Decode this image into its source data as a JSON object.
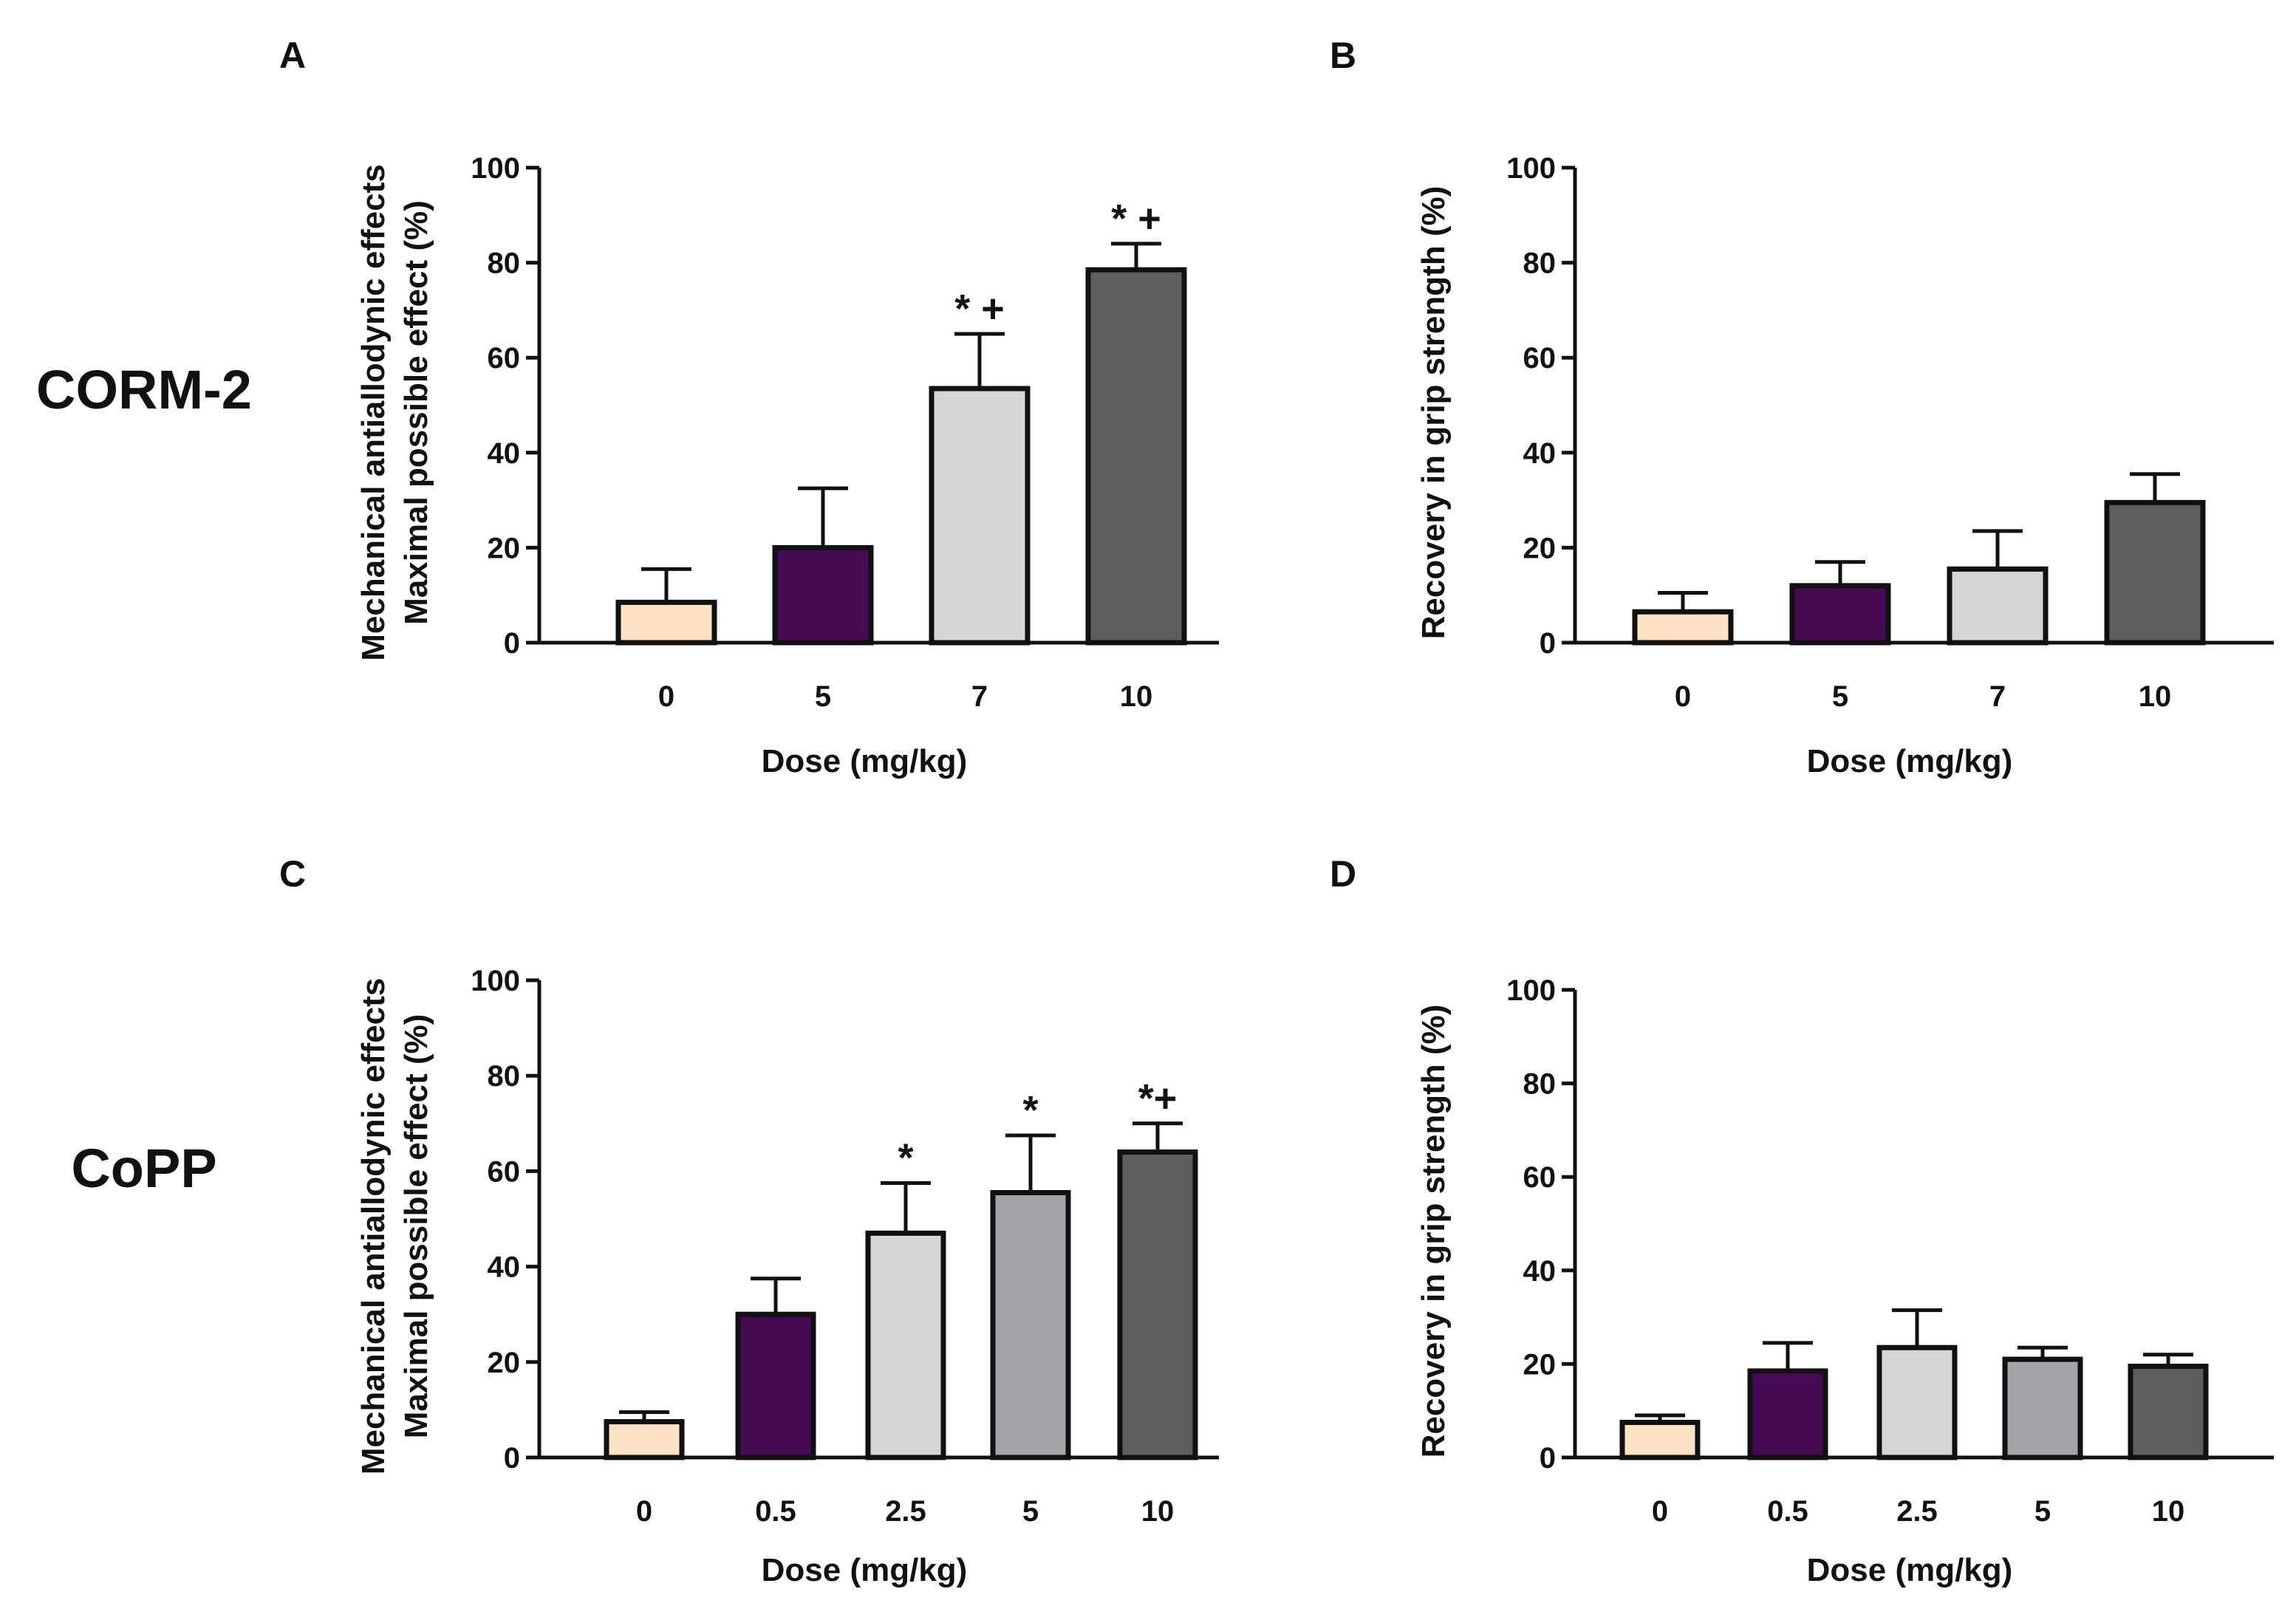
{
  "row_labels": [
    "CORM-2",
    "CoPP"
  ],
  "chart_data": [
    {
      "panel": "A",
      "type": "bar",
      "categories": [
        "0",
        "5",
        "7",
        "10"
      ],
      "values": [
        8.5,
        20,
        53.5,
        78.5
      ],
      "errors": [
        7,
        12.5,
        11.5,
        5.5
      ],
      "significance": [
        "",
        "",
        "* +",
        "* +"
      ],
      "colors": [
        "#fde3c4",
        "#470a55",
        "#d6d6d6",
        "#5e5e5e"
      ],
      "xlabel": "Dose (mg/kg)",
      "ylabel": [
        "Mechanical antiallodynic effects",
        "Maximal possible effect (%)"
      ],
      "ylim": [
        0,
        100
      ],
      "yticks": [
        "0",
        "20",
        "40",
        "60",
        "80",
        "100"
      ],
      "legend": "none"
    },
    {
      "panel": "B",
      "type": "bar",
      "categories": [
        "0",
        "5",
        "7",
        "10"
      ],
      "values": [
        6.5,
        12,
        15.5,
        29.5
      ],
      "errors": [
        4,
        5,
        8,
        6
      ],
      "significance": [
        "",
        "",
        "",
        ""
      ],
      "colors": [
        "#fde3c4",
        "#470a55",
        "#d6d6d6",
        "#5e5e5e"
      ],
      "xlabel": "Dose (mg/kg)",
      "ylabel": [
        "Recovery in grip strength (%)"
      ],
      "ylim": [
        0,
        100
      ],
      "yticks": [
        "0",
        "20",
        "40",
        "60",
        "80",
        "100"
      ],
      "legend": "none"
    },
    {
      "panel": "C",
      "type": "bar",
      "categories": [
        "0",
        "0.5",
        "2.5",
        "5",
        "10"
      ],
      "values": [
        7.5,
        30,
        47,
        55.5,
        64
      ],
      "errors": [
        2,
        7.5,
        10.5,
        12,
        6
      ],
      "significance": [
        "",
        "",
        "*",
        "*",
        "*+"
      ],
      "colors": [
        "#fde3c4",
        "#470a55",
        "#d6d6d6",
        "#a3a3a8",
        "#5e5e5e"
      ],
      "xlabel": "Dose (mg/kg)",
      "ylabel": [
        "Mechanical antiallodynic effects",
        "Maximal possible effect (%)"
      ],
      "ylim": [
        0,
        100
      ],
      "yticks": [
        "0",
        "20",
        "40",
        "60",
        "80",
        "100"
      ],
      "legend": "none"
    },
    {
      "panel": "D",
      "type": "bar",
      "categories": [
        "0",
        "0.5",
        "2.5",
        "5",
        "10"
      ],
      "values": [
        7.5,
        18.5,
        23.5,
        21,
        19.5
      ],
      "errors": [
        1.5,
        6,
        8,
        2.5,
        2.5
      ],
      "significance": [
        "",
        "",
        "",
        "",
        ""
      ],
      "colors": [
        "#fde3c4",
        "#470a55",
        "#d6d6d6",
        "#a3a3a8",
        "#5e5e5e"
      ],
      "xlabel": "Dose (mg/kg)",
      "ylabel": [
        "Recovery in grip strength (%)"
      ],
      "ylim": [
        0,
        100
      ],
      "yticks": [
        "0",
        "20",
        "40",
        "60",
        "80",
        "100"
      ],
      "legend": "none"
    }
  ]
}
